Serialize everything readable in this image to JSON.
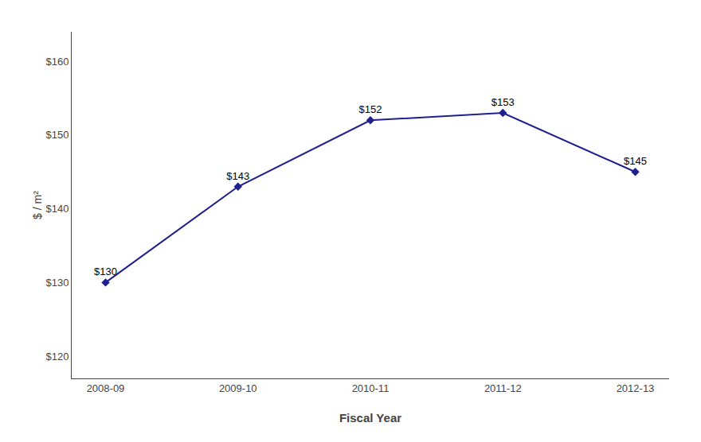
{
  "chart_data": {
    "type": "line",
    "categories": [
      "2008-09",
      "2009-10",
      "2010-11",
      "2011-12",
      "2012-13"
    ],
    "values": [
      130,
      143,
      152,
      153,
      145
    ],
    "value_labels": [
      "$130",
      "$143",
      "$152",
      "$153",
      "$145"
    ],
    "data_labels": true,
    "color": "#1F1F8F",
    "marker": "diamond",
    "xlabel": "Fiscal Year",
    "ylabel": "$ / m²",
    "ylim": [
      117,
      164
    ],
    "yticks": [
      {
        "value": 120,
        "label": "$120"
      },
      {
        "value": 130,
        "label": "$130"
      },
      {
        "value": 140,
        "label": "$140"
      },
      {
        "value": 150,
        "label": "$150"
      },
      {
        "value": 160,
        "label": "$160"
      }
    ],
    "grid": false
  }
}
